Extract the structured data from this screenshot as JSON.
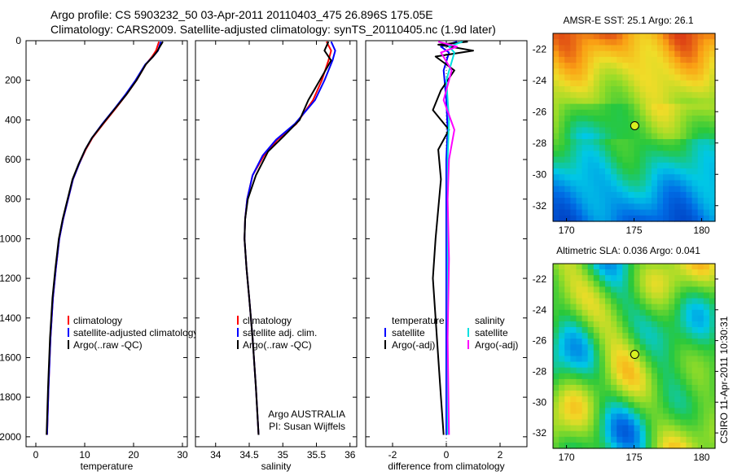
{
  "header": {
    "line1": "Argo profile: CS 5903232_50 03-Apr-2011 20110403_475 26.896S 175.05E",
    "line2": "Climatology: CARS2009. Satellite-adjusted climatology: synTS_20110405.nc (1.9d later)"
  },
  "side_label": "CSIRO 11-Apr-2011 10:30:31",
  "colors": {
    "climatology": "#ff0000",
    "satellite": "#0000ff",
    "argo": "#000000",
    "sal_satellite": "#00e0e0",
    "sal_argo": "#ff00ff"
  },
  "chart_data": [
    {
      "type": "line",
      "panel": "temperature",
      "xlabel": "temperature",
      "xlim": [
        -2,
        31
      ],
      "ylim": [
        2050,
        0
      ],
      "xticks": [
        "0",
        "10",
        "20",
        "30"
      ],
      "xtick_values": [
        0,
        10,
        20,
        30
      ],
      "yticks": [
        "0",
        "200",
        "400",
        "600",
        "800",
        "1000",
        "1200",
        "1400",
        "1600",
        "1800",
        "2000"
      ],
      "ytick_values": [
        0,
        200,
        400,
        600,
        800,
        1000,
        1200,
        1400,
        1600,
        1800,
        2000
      ],
      "legend": [
        "climatology",
        "satellite-adjusted climatology",
        "Argo(..raw -QC)"
      ],
      "series": [
        {
          "name": "climatology",
          "color": "#ff0000",
          "x": [
            25.2,
            24.6,
            23.8,
            22.5,
            20.6,
            18.6,
            16.4,
            13.8,
            11.6,
            10.2,
            8.9,
            7.6,
            6.6,
            5.6,
            4.8,
            4.1,
            3.5,
            3.0,
            2.6,
            2.3
          ],
          "y": [
            5,
            50,
            80,
            120,
            200,
            270,
            340,
            420,
            490,
            550,
            620,
            700,
            800,
            900,
            1000,
            1150,
            1300,
            1500,
            1750,
            1990
          ]
        },
        {
          "name": "satellite-adjusted climatology",
          "color": "#0000ff",
          "x": [
            25.6,
            25.0,
            24.0,
            22.4,
            20.4,
            18.4,
            16.2,
            13.6,
            11.5,
            10.1,
            8.9,
            7.6,
            6.6,
            5.6,
            4.8,
            4.1,
            3.5,
            3.0,
            2.6,
            2.3
          ],
          "y": [
            5,
            50,
            80,
            120,
            200,
            270,
            340,
            420,
            490,
            550,
            620,
            700,
            800,
            900,
            1000,
            1150,
            1300,
            1500,
            1750,
            1990
          ]
        },
        {
          "name": "Argo(..raw -QC)",
          "color": "#000000",
          "x": [
            26.0,
            25.5,
            24.8,
            24.0,
            22.5,
            20.6,
            18.6,
            16.3,
            13.7,
            11.5,
            10.1,
            8.8,
            7.5,
            6.5,
            5.5,
            4.7,
            4.0,
            3.4,
            2.9,
            2.5,
            2.2
          ],
          "y": [
            5,
            25,
            55,
            80,
            120,
            200,
            270,
            340,
            420,
            490,
            550,
            620,
            700,
            800,
            900,
            1000,
            1150,
            1300,
            1500,
            1750,
            1990
          ]
        }
      ]
    },
    {
      "type": "line",
      "panel": "salinity",
      "xlabel": "salinity",
      "xlim": [
        33.7,
        36.1
      ],
      "ylim": [
        2050,
        0
      ],
      "xticks": [
        "34",
        "34.5",
        "35",
        "35.5",
        "36"
      ],
      "xtick_values": [
        34,
        34.5,
        35,
        35.5,
        36
      ],
      "legend": [
        "climatology",
        "satellite adj. clim.",
        "Argo(..raw -QC)"
      ],
      "annotation": [
        "Argo AUSTRALIA",
        "PI: Susan Wijffels"
      ],
      "series": [
        {
          "name": "climatology",
          "color": "#ff0000",
          "x": [
            35.65,
            35.72,
            35.68,
            35.58,
            35.45,
            35.2,
            34.92,
            34.72,
            34.55,
            34.47,
            34.44,
            34.43,
            34.46,
            34.5,
            34.55,
            34.6,
            34.64
          ],
          "y": [
            5,
            50,
            100,
            200,
            300,
            420,
            500,
            580,
            680,
            800,
            900,
            1000,
            1150,
            1300,
            1500,
            1750,
            1990
          ]
        },
        {
          "name": "satellite adj. clim.",
          "color": "#0000ff",
          "x": [
            35.72,
            35.78,
            35.74,
            35.62,
            35.48,
            35.18,
            34.9,
            34.7,
            34.55,
            34.47,
            34.44,
            34.43,
            34.46,
            34.5,
            34.55,
            34.6,
            34.64
          ],
          "y": [
            5,
            50,
            100,
            200,
            300,
            420,
            500,
            580,
            680,
            800,
            900,
            1000,
            1150,
            1300,
            1500,
            1750,
            1990
          ]
        },
        {
          "name": "Argo(..raw -QC)",
          "color": "#000000",
          "x": [
            35.68,
            35.62,
            35.72,
            35.55,
            35.38,
            35.25,
            35.02,
            34.78,
            34.6,
            34.48,
            34.44,
            34.43,
            34.46,
            34.5,
            34.55,
            34.6,
            34.64
          ],
          "y": [
            5,
            50,
            100,
            200,
            300,
            400,
            480,
            560,
            680,
            800,
            900,
            1000,
            1150,
            1300,
            1500,
            1750,
            1990
          ]
        }
      ]
    },
    {
      "type": "line",
      "panel": "difference",
      "xlabel": "difference from climatology",
      "xlim": [
        -3,
        3
      ],
      "ylim": [
        2050,
        0
      ],
      "xticks": [
        "-2",
        "0",
        "2"
      ],
      "xtick_values": [
        -2,
        0,
        2
      ],
      "legend_left": [
        "temperature",
        "satellite",
        "Argo(-adj)"
      ],
      "legend_right": [
        "salinity",
        "satellite",
        "Argo(-adj)"
      ],
      "series": [
        {
          "name": "satellite",
          "color": "#0000ff",
          "x": [
            0.4,
            -0.2,
            0.1,
            -0.1,
            0.0,
            0.05,
            0.0,
            0.0,
            0.0,
            0.0,
            0.0,
            0.0
          ],
          "y": [
            5,
            30,
            60,
            150,
            300,
            450,
            600,
            800,
            1000,
            1300,
            1600,
            1990
          ]
        },
        {
          "name": "Argo(-adj)",
          "color": "#000000",
          "x": [
            0.8,
            -0.3,
            1.0,
            -0.4,
            0.3,
            -0.2,
            -0.5,
            0.1,
            -0.3,
            -0.2,
            -0.3,
            -0.4,
            -0.5,
            -0.4,
            -0.3,
            -0.2,
            -0.1
          ],
          "y": [
            5,
            20,
            50,
            80,
            150,
            250,
            350,
            450,
            550,
            700,
            850,
            1000,
            1200,
            1400,
            1600,
            1800,
            1990
          ]
        },
        {
          "name": "satellite",
          "color": "#00e0e0",
          "x": [
            0.6,
            0.1,
            0.3,
            0.0,
            0.1,
            0.05,
            0.05,
            0.05,
            0.05,
            0.05
          ],
          "y": [
            5,
            30,
            60,
            200,
            400,
            600,
            800,
            1100,
            1500,
            1990
          ]
        },
        {
          "name": "Argo(-adj)",
          "color": "#ff00ff",
          "x": [
            -0.3,
            0.4,
            -0.2,
            0.2,
            -0.1,
            0.3,
            0.1,
            0.05,
            0.1,
            0.05,
            0.1
          ],
          "y": [
            5,
            30,
            60,
            150,
            300,
            450,
            600,
            800,
            1100,
            1500,
            1990
          ]
        }
      ]
    },
    {
      "type": "heatmap",
      "panel": "sst_map",
      "title": "AMSR-E SST: 25.1 Argo: 26.1",
      "xlim": [
        169,
        181
      ],
      "ylim": [
        -33,
        -21
      ],
      "xticks": [
        "170",
        "175",
        "180"
      ],
      "xtick_values": [
        170,
        175,
        180
      ],
      "yticks": [
        "-22",
        "-24",
        "-26",
        "-28",
        "-30",
        "-32"
      ],
      "ytick_values": [
        -22,
        -24,
        -26,
        -28,
        -30,
        -32
      ],
      "marker": {
        "lon": 175.05,
        "lat": -26.896
      }
    },
    {
      "type": "heatmap",
      "panel": "sla_map",
      "title": "Altimetric SLA: 0.036 Argo: 0.041",
      "xlim": [
        169,
        181
      ],
      "ylim": [
        -33,
        -21
      ],
      "xticks": [
        "170",
        "175",
        "180"
      ],
      "xtick_values": [
        170,
        175,
        180
      ],
      "yticks": [
        "-22",
        "-24",
        "-26",
        "-28",
        "-30",
        "-32"
      ],
      "ytick_values": [
        -22,
        -24,
        -26,
        -28,
        -30,
        -32
      ],
      "marker": {
        "lon": 175.05,
        "lat": -26.896
      }
    }
  ]
}
